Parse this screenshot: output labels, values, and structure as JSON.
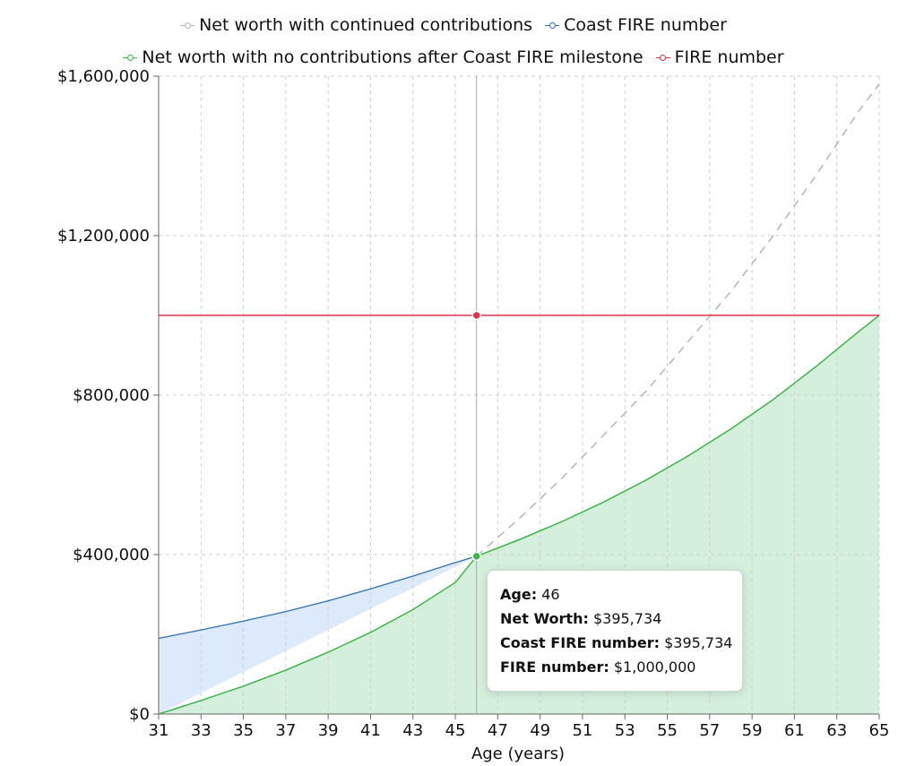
{
  "chart_data": {
    "type": "area",
    "xlabel": "Age (years)",
    "ylabel": "",
    "xlim": [
      31,
      65
    ],
    "ylim": [
      0,
      1600000
    ],
    "x_ticks": [
      31,
      33,
      35,
      37,
      39,
      41,
      43,
      45,
      47,
      49,
      51,
      53,
      55,
      57,
      59,
      61,
      63,
      65
    ],
    "x_tick_labels": [
      "31",
      "33",
      "35",
      "37",
      "39",
      "41",
      "43",
      "45",
      "47",
      "49",
      "51",
      "53",
      "55",
      "57",
      "59",
      "61",
      "63",
      "65"
    ],
    "y_ticks": [
      0,
      400000,
      800000,
      1200000,
      1600000
    ],
    "y_tick_labels": [
      "$0",
      "$400,000",
      "$800,000",
      "$1,200,000",
      "$1,600,000"
    ],
    "grid": true,
    "legend_position": "top",
    "series": [
      {
        "name": "Net worth with continued contributions",
        "color": "#b5b5b5",
        "style": "dashed",
        "x": [
          46,
          48,
          50,
          52,
          54,
          56,
          58,
          60,
          62,
          64,
          65
        ],
        "y": [
          395734,
          490000,
          590000,
          700000,
          810000,
          935000,
          1060000,
          1200000,
          1350000,
          1510000,
          1580000
        ]
      },
      {
        "name": "Coast FIRE number",
        "color": "#2e6fb5",
        "fill": "#ddeafb",
        "x": [
          31,
          33,
          35,
          37,
          39,
          41,
          43,
          45,
          46
        ],
        "y": [
          190000,
          211000,
          233000,
          257000,
          284000,
          314000,
          346000,
          380000,
          395734
        ]
      },
      {
        "name": "Net worth with no contributions after Coast FIRE milestone",
        "color": "#3cb54a",
        "fill": "#d4efdc",
        "x": [
          31,
          33,
          35,
          37,
          39,
          41,
          43,
          45,
          46,
          48,
          50,
          52,
          54,
          56,
          58,
          60,
          62,
          64,
          65
        ],
        "y": [
          0,
          34000,
          70000,
          110000,
          155000,
          205000,
          262000,
          330000,
          395734,
          437000,
          482000,
          532000,
          587000,
          648000,
          715000,
          789000,
          871000,
          958000,
          1000000
        ]
      },
      {
        "name": "FIRE number",
        "color": "#e0344a",
        "x": [
          31,
          65
        ],
        "y": [
          1000000,
          1000000
        ]
      }
    ],
    "hover": {
      "x": 46,
      "points": [
        395734,
        1000000
      ],
      "colors": [
        "#3cb54a",
        "#e0344a"
      ]
    },
    "tooltip": {
      "age_label": "Age:",
      "age_value": "46",
      "net_worth_label": "Net Worth:",
      "net_worth_value": "$395,734",
      "coast_label": "Coast FIRE number:",
      "coast_value": "$395,734",
      "fire_label": "FIRE number:",
      "fire_value": "$1,000,000"
    }
  }
}
